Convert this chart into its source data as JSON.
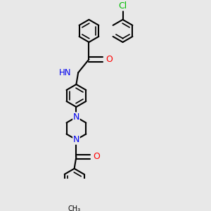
{
  "bg_color": "#e8e8e8",
  "bond_color": "#000000",
  "bond_width": 1.5,
  "atom_colors": {
    "N": "#0000ee",
    "O": "#ff0000",
    "Cl": "#00bb00",
    "C": "#000000"
  },
  "font_size": 8.5,
  "xlim": [
    0,
    3.0
  ],
  "ylim": [
    0,
    3.0
  ]
}
